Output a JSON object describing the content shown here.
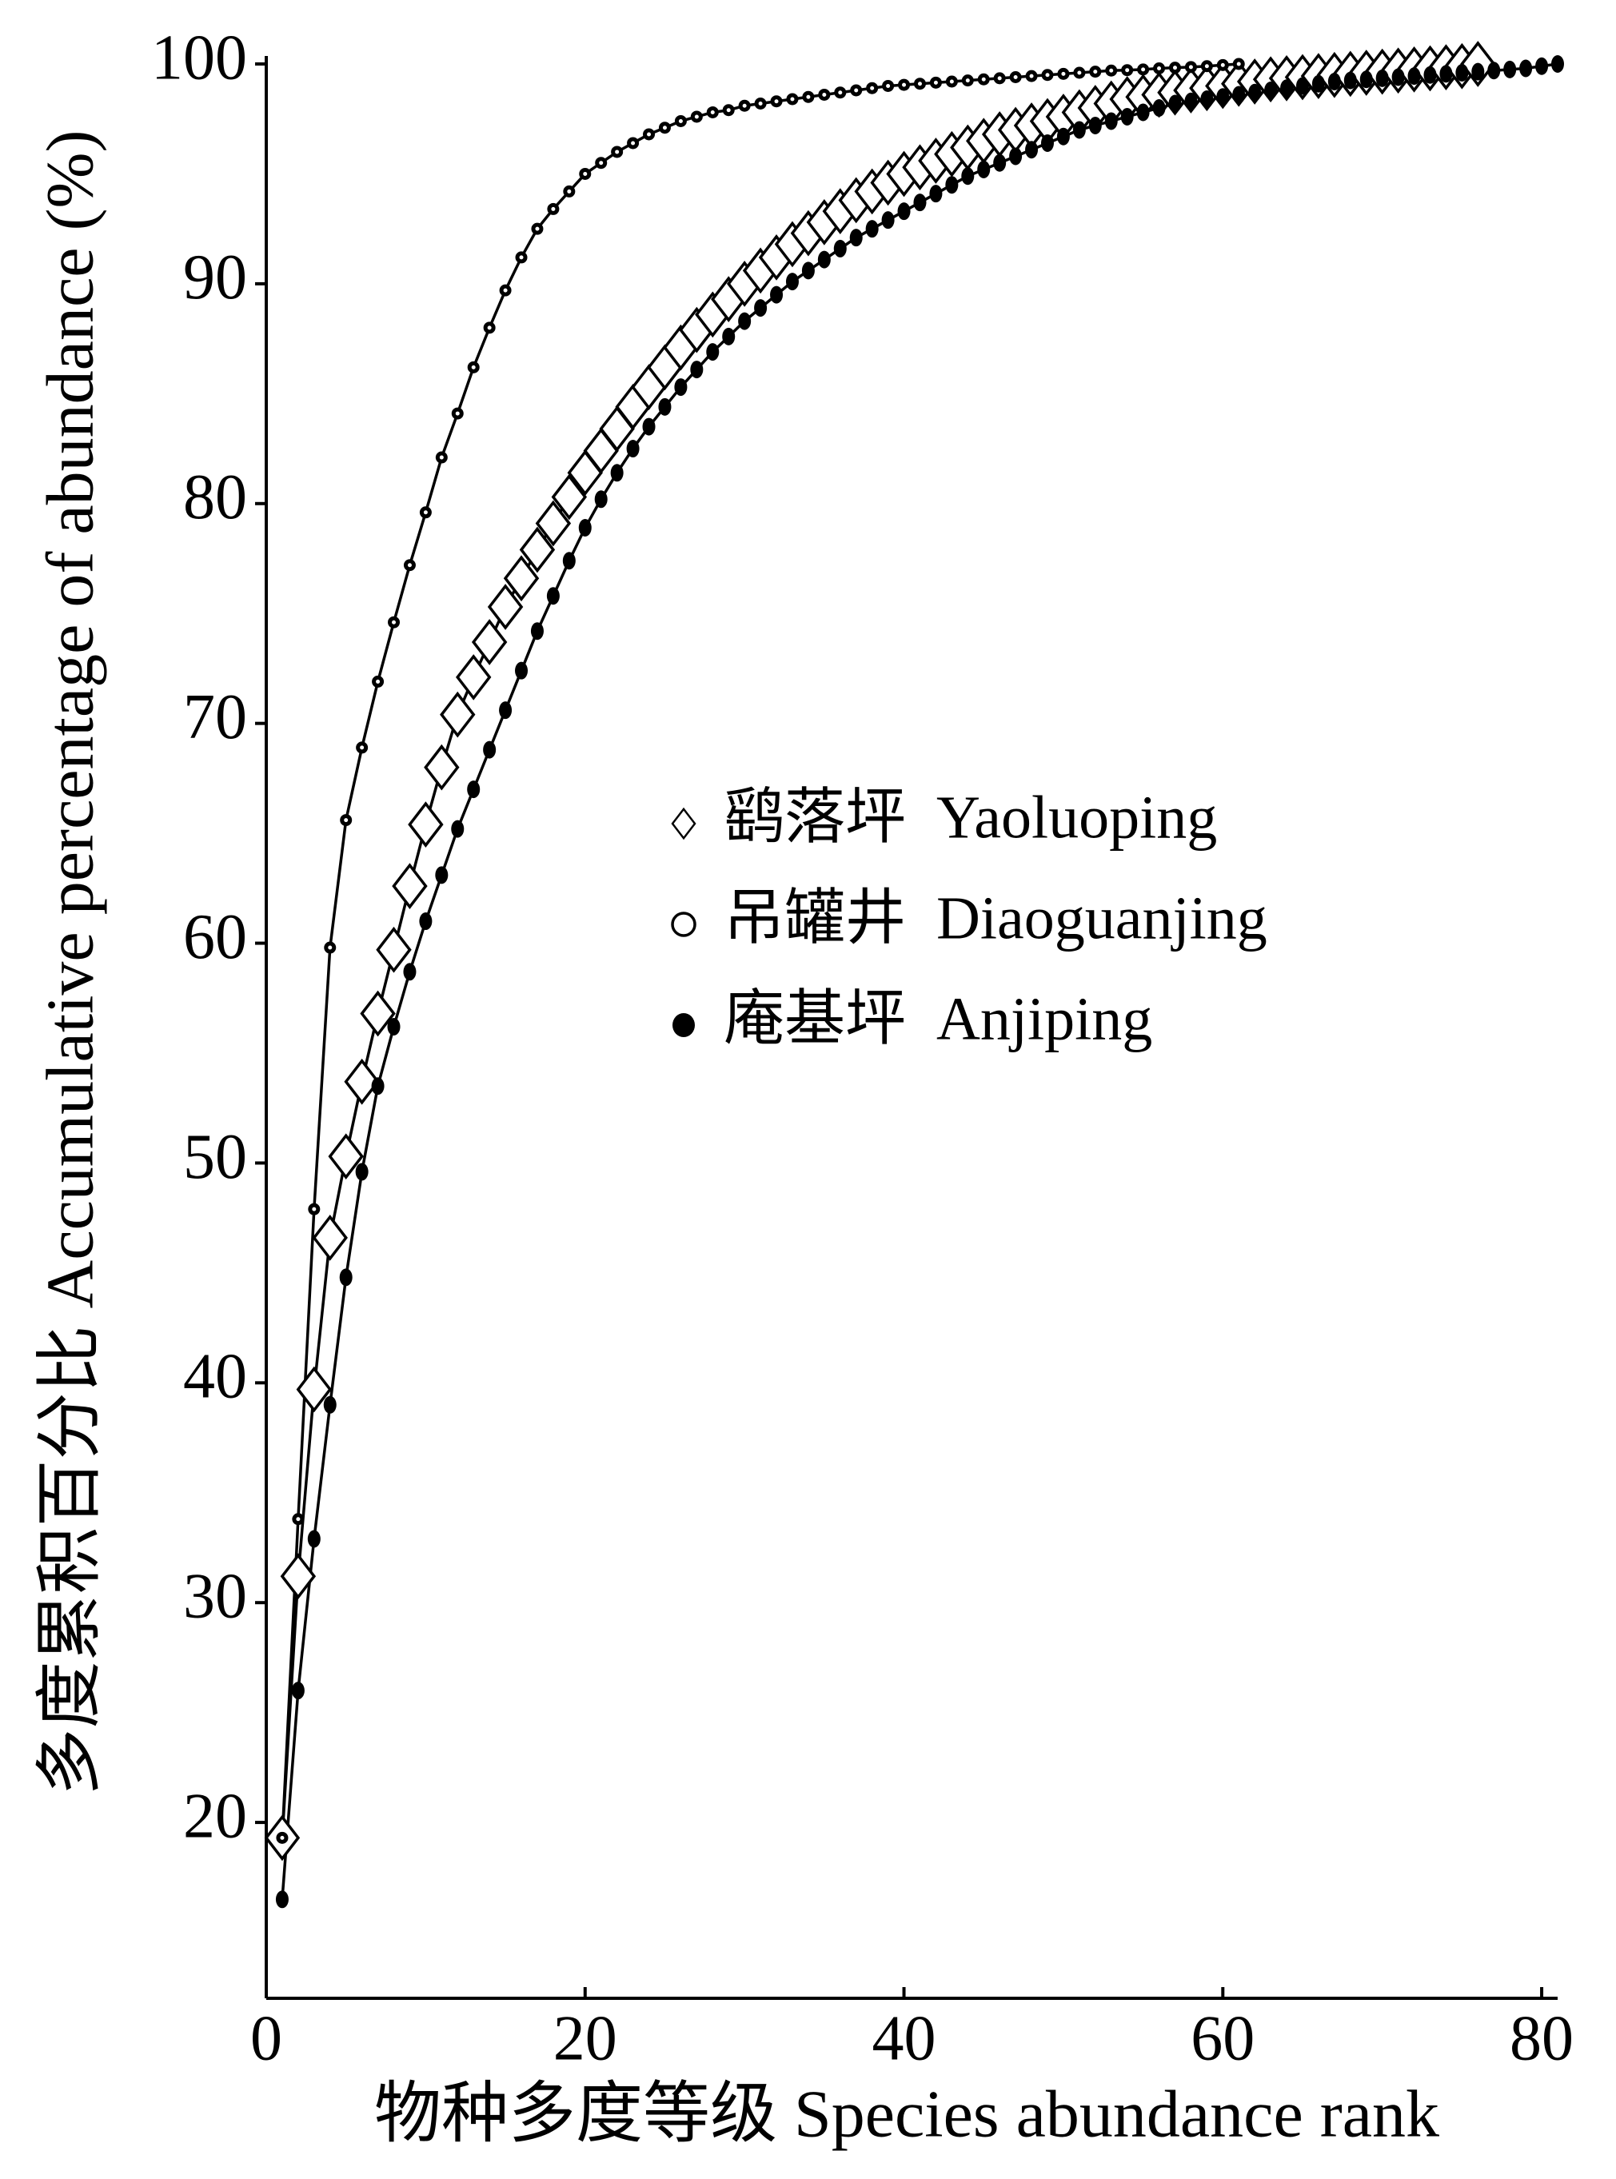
{
  "chart_data": {
    "type": "line",
    "xlabel": "物种多度等级 Species abundance rank",
    "ylabel": "多度累积百分比 Accumulative percentage of abundance (%)",
    "xlim": [
      0,
      81
    ],
    "xticks": [
      0,
      20,
      40,
      60,
      80
    ],
    "ylim": [
      12,
      100
    ],
    "yticks": [
      20,
      30,
      40,
      50,
      60,
      70,
      80,
      90,
      100
    ],
    "series": [
      {
        "name": "鹞落坪  Yaoluoping",
        "color": "#000000",
        "marker": "diamond",
        "x": [
          1,
          2,
          3,
          4,
          5,
          6,
          7,
          8,
          9,
          10,
          11,
          12,
          13,
          14,
          15,
          16,
          17,
          18,
          19,
          20,
          21,
          22,
          23,
          24,
          25,
          26,
          27,
          28,
          29,
          30,
          31,
          32,
          33,
          34,
          35,
          36,
          37,
          38,
          39,
          40,
          41,
          42,
          43,
          44,
          45,
          46,
          47,
          48,
          49,
          50,
          51,
          52,
          53,
          54,
          55,
          56,
          57,
          58,
          59,
          60,
          61,
          62,
          63,
          64,
          65,
          66,
          67,
          68,
          69,
          70,
          71,
          72,
          73,
          74,
          75,
          76
        ],
        "values": [
          19.3,
          31.2,
          39.7,
          46.6,
          50.3,
          53.7,
          56.8,
          59.7,
          62.6,
          65.4,
          68.0,
          70.4,
          72.1,
          73.7,
          75.3,
          76.6,
          77.9,
          79.1,
          80.3,
          81.4,
          82.4,
          83.4,
          84.4,
          85.3,
          86.2,
          87.1,
          87.9,
          88.6,
          89.3,
          90.0,
          90.6,
          91.2,
          91.8,
          92.3,
          92.8,
          93.3,
          93.8,
          94.2,
          94.6,
          95.0,
          95.3,
          95.6,
          95.9,
          96.2,
          96.5,
          96.8,
          97.0,
          97.2,
          97.4,
          97.6,
          97.8,
          98.0,
          98.2,
          98.4,
          98.5,
          98.6,
          98.7,
          98.8,
          98.9,
          99.0,
          99.1,
          99.2,
          99.3,
          99.35,
          99.4,
          99.45,
          99.5,
          99.55,
          99.6,
          99.65,
          99.7,
          99.75,
          99.8,
          99.85,
          99.9,
          100
        ]
      },
      {
        "name": "吊罐井  Diaoguanjing",
        "color": "#000000",
        "marker": "circle",
        "x": [
          1,
          2,
          3,
          4,
          5,
          6,
          7,
          8,
          9,
          10,
          11,
          12,
          13,
          14,
          15,
          16,
          17,
          18,
          19,
          20,
          21,
          22,
          23,
          24,
          25,
          26,
          27,
          28,
          29,
          30,
          31,
          32,
          33,
          34,
          35,
          36,
          37,
          38,
          39,
          40,
          41,
          42,
          43,
          44,
          45,
          46,
          47,
          48,
          49,
          50,
          51,
          52,
          53,
          54,
          55,
          56,
          57,
          58,
          59,
          60,
          61
        ],
        "values": [
          19.3,
          33.8,
          47.9,
          59.8,
          65.6,
          68.9,
          71.9,
          74.6,
          77.2,
          79.6,
          82.1,
          84.1,
          86.2,
          88.0,
          89.7,
          91.2,
          92.5,
          93.4,
          94.2,
          95.0,
          95.5,
          96.0,
          96.4,
          96.8,
          97.1,
          97.4,
          97.6,
          97.8,
          97.9,
          98.1,
          98.2,
          98.3,
          98.4,
          98.5,
          98.6,
          98.7,
          98.8,
          98.9,
          99.0,
          99.05,
          99.1,
          99.15,
          99.2,
          99.25,
          99.3,
          99.35,
          99.4,
          99.45,
          99.5,
          99.55,
          99.6,
          99.65,
          99.7,
          99.72,
          99.75,
          99.8,
          99.83,
          99.86,
          99.9,
          99.95,
          100
        ]
      },
      {
        "name": "庵基坪  Anjiping",
        "color": "#000000",
        "marker": "dot",
        "x": [
          1,
          2,
          3,
          4,
          5,
          6,
          7,
          8,
          9,
          10,
          11,
          12,
          13,
          14,
          15,
          16,
          17,
          18,
          19,
          20,
          21,
          22,
          23,
          24,
          25,
          26,
          27,
          28,
          29,
          30,
          31,
          32,
          33,
          34,
          35,
          36,
          37,
          38,
          39,
          40,
          41,
          42,
          43,
          44,
          45,
          46,
          47,
          48,
          49,
          50,
          51,
          52,
          53,
          54,
          55,
          56,
          57,
          58,
          59,
          60,
          61,
          62,
          63,
          64,
          65,
          66,
          67,
          68,
          69,
          70,
          71,
          72,
          73,
          74,
          75,
          76,
          77,
          78,
          79,
          80,
          81
        ],
        "values": [
          16.5,
          26.0,
          32.9,
          39.0,
          44.8,
          49.6,
          53.5,
          56.2,
          58.7,
          61.0,
          63.1,
          65.2,
          67.0,
          68.8,
          70.6,
          72.4,
          74.2,
          75.8,
          77.4,
          78.9,
          80.2,
          81.4,
          82.5,
          83.5,
          84.4,
          85.3,
          86.1,
          86.9,
          87.6,
          88.3,
          88.9,
          89.5,
          90.1,
          90.6,
          91.1,
          91.6,
          92.1,
          92.5,
          92.9,
          93.3,
          93.7,
          94.1,
          94.5,
          94.9,
          95.2,
          95.5,
          95.8,
          96.1,
          96.4,
          96.7,
          97.0,
          97.2,
          97.4,
          97.6,
          97.8,
          98.0,
          98.2,
          98.3,
          98.4,
          98.5,
          98.6,
          98.7,
          98.8,
          98.9,
          99.0,
          99.1,
          99.2,
          99.25,
          99.3,
          99.35,
          99.4,
          99.45,
          99.5,
          99.55,
          99.6,
          99.65,
          99.7,
          99.75,
          99.8,
          99.9,
          100
        ]
      }
    ]
  }
}
